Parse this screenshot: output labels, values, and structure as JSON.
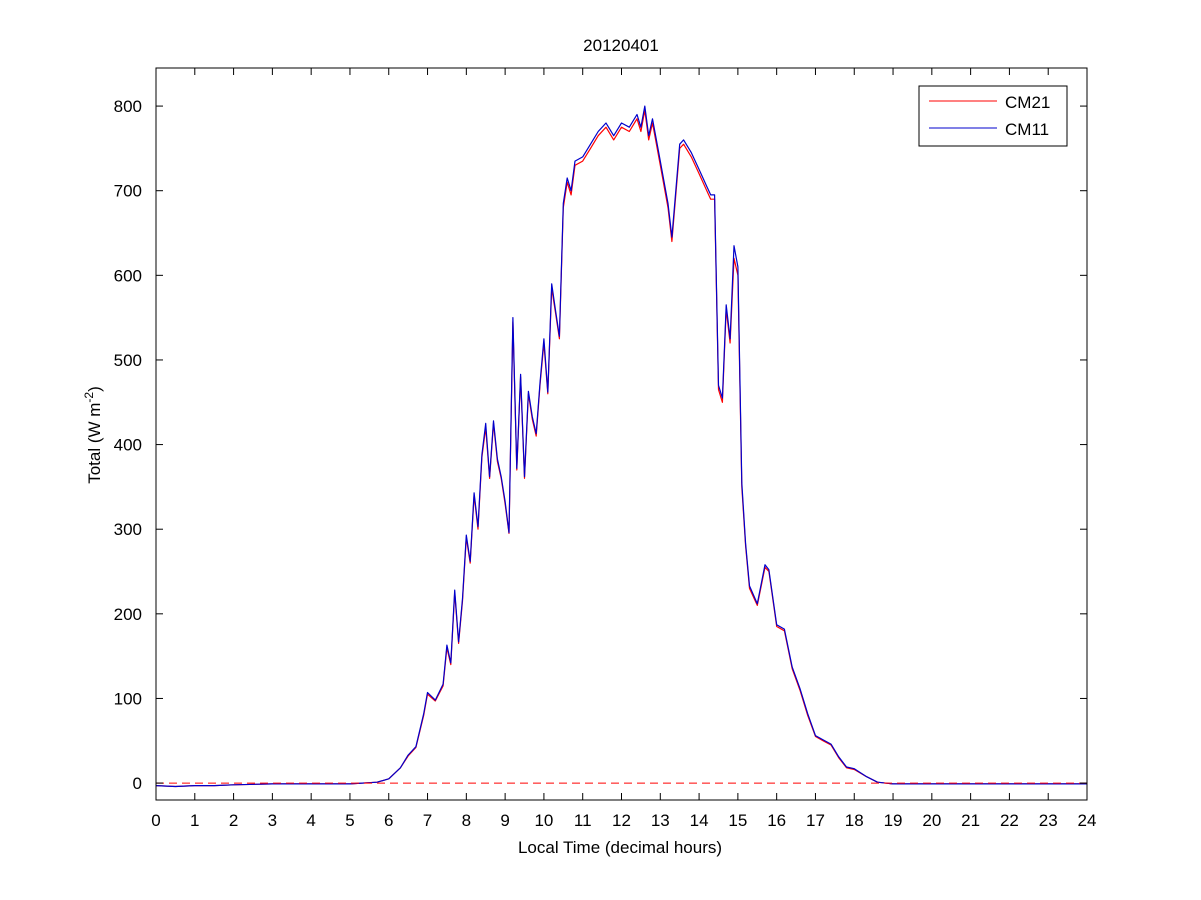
{
  "chart_data": {
    "type": "line",
    "title": "20120401",
    "xlabel": "Local Time (decimal hours)",
    "ylabel": "Total (W m",
    "ylabel_sup": "-2",
    "ylabel_end": ")",
    "xlim": [
      0,
      24
    ],
    "ylim": [
      -20,
      845
    ],
    "xticks": [
      0,
      1,
      2,
      3,
      4,
      5,
      6,
      7,
      8,
      9,
      10,
      11,
      12,
      13,
      14,
      15,
      16,
      17,
      18,
      19,
      20,
      21,
      22,
      23,
      24
    ],
    "yticks": [
      0,
      100,
      200,
      300,
      400,
      500,
      600,
      700,
      800
    ],
    "grid": false,
    "legend_position": "top-right",
    "zero_line": {
      "y": 0,
      "color": "#ff0000",
      "style": "dashed"
    },
    "series": [
      {
        "name": "CM21",
        "color": "#ff0000",
        "points": [
          [
            0,
            -3
          ],
          [
            0.5,
            -4
          ],
          [
            1,
            -3
          ],
          [
            1.5,
            -3
          ],
          [
            2,
            -2
          ],
          [
            3,
            -1
          ],
          [
            4,
            -1
          ],
          [
            5,
            -1
          ],
          [
            5.7,
            1
          ],
          [
            6,
            5
          ],
          [
            6.3,
            18
          ],
          [
            6.5,
            32
          ],
          [
            6.7,
            42
          ],
          [
            6.9,
            80
          ],
          [
            7,
            105
          ],
          [
            7.2,
            97
          ],
          [
            7.4,
            115
          ],
          [
            7.5,
            160
          ],
          [
            7.6,
            140
          ],
          [
            7.7,
            225
          ],
          [
            7.8,
            165
          ],
          [
            7.9,
            215
          ],
          [
            8,
            290
          ],
          [
            8.1,
            260
          ],
          [
            8.2,
            340
          ],
          [
            8.3,
            300
          ],
          [
            8.4,
            385
          ],
          [
            8.5,
            420
          ],
          [
            8.6,
            360
          ],
          [
            8.7,
            425
          ],
          [
            8.8,
            380
          ],
          [
            8.9,
            360
          ],
          [
            9,
            330
          ],
          [
            9.1,
            295
          ],
          [
            9.2,
            545
          ],
          [
            9.3,
            370
          ],
          [
            9.4,
            480
          ],
          [
            9.5,
            360
          ],
          [
            9.6,
            460
          ],
          [
            9.7,
            430
          ],
          [
            9.8,
            410
          ],
          [
            9.9,
            470
          ],
          [
            10,
            520
          ],
          [
            10.1,
            460
          ],
          [
            10.2,
            585
          ],
          [
            10.3,
            555
          ],
          [
            10.4,
            525
          ],
          [
            10.5,
            680
          ],
          [
            10.6,
            710
          ],
          [
            10.7,
            695
          ],
          [
            10.8,
            730
          ],
          [
            11,
            735
          ],
          [
            11.2,
            750
          ],
          [
            11.4,
            765
          ],
          [
            11.6,
            775
          ],
          [
            11.8,
            760
          ],
          [
            12,
            775
          ],
          [
            12.2,
            770
          ],
          [
            12.4,
            785
          ],
          [
            12.5,
            770
          ],
          [
            12.6,
            795
          ],
          [
            12.7,
            760
          ],
          [
            12.8,
            780
          ],
          [
            13,
            730
          ],
          [
            13.2,
            680
          ],
          [
            13.3,
            640
          ],
          [
            13.4,
            695
          ],
          [
            13.5,
            750
          ],
          [
            13.6,
            755
          ],
          [
            13.8,
            740
          ],
          [
            14,
            720
          ],
          [
            14.2,
            700
          ],
          [
            14.3,
            690
          ],
          [
            14.4,
            690
          ],
          [
            14.5,
            465
          ],
          [
            14.6,
            450
          ],
          [
            14.7,
            560
          ],
          [
            14.8,
            520
          ],
          [
            14.9,
            620
          ],
          [
            15,
            600
          ],
          [
            15.1,
            350
          ],
          [
            15.2,
            280
          ],
          [
            15.3,
            230
          ],
          [
            15.5,
            210
          ],
          [
            15.7,
            255
          ],
          [
            15.8,
            250
          ],
          [
            16,
            185
          ],
          [
            16.2,
            180
          ],
          [
            16.4,
            135
          ],
          [
            16.6,
            110
          ],
          [
            16.8,
            80
          ],
          [
            17,
            55
          ],
          [
            17.2,
            50
          ],
          [
            17.4,
            45
          ],
          [
            17.6,
            30
          ],
          [
            17.8,
            18
          ],
          [
            18,
            16
          ],
          [
            18.3,
            8
          ],
          [
            18.6,
            1
          ],
          [
            19,
            -1
          ],
          [
            20,
            -1
          ],
          [
            21,
            -1
          ],
          [
            22,
            -1
          ],
          [
            23,
            -1
          ],
          [
            24,
            -1
          ]
        ]
      },
      {
        "name": "CM11",
        "color": "#0000cc",
        "points": [
          [
            0,
            -3
          ],
          [
            0.5,
            -4
          ],
          [
            1,
            -3
          ],
          [
            1.5,
            -3
          ],
          [
            2,
            -2
          ],
          [
            3,
            -1
          ],
          [
            4,
            -1
          ],
          [
            5,
            -1
          ],
          [
            5.7,
            1
          ],
          [
            6,
            5
          ],
          [
            6.3,
            18
          ],
          [
            6.5,
            33
          ],
          [
            6.7,
            43
          ],
          [
            6.9,
            82
          ],
          [
            7,
            107
          ],
          [
            7.2,
            98
          ],
          [
            7.4,
            117
          ],
          [
            7.5,
            163
          ],
          [
            7.6,
            142
          ],
          [
            7.7,
            228
          ],
          [
            7.8,
            167
          ],
          [
            7.9,
            218
          ],
          [
            8,
            293
          ],
          [
            8.1,
            262
          ],
          [
            8.2,
            343
          ],
          [
            8.3,
            303
          ],
          [
            8.4,
            388
          ],
          [
            8.5,
            425
          ],
          [
            8.6,
            362
          ],
          [
            8.7,
            428
          ],
          [
            8.8,
            383
          ],
          [
            8.9,
            362
          ],
          [
            9,
            333
          ],
          [
            9.1,
            296
          ],
          [
            9.2,
            550
          ],
          [
            9.3,
            372
          ],
          [
            9.4,
            483
          ],
          [
            9.5,
            362
          ],
          [
            9.6,
            463
          ],
          [
            9.7,
            433
          ],
          [
            9.8,
            413
          ],
          [
            9.9,
            473
          ],
          [
            10,
            525
          ],
          [
            10.1,
            462
          ],
          [
            10.2,
            590
          ],
          [
            10.3,
            558
          ],
          [
            10.4,
            528
          ],
          [
            10.5,
            685
          ],
          [
            10.6,
            715
          ],
          [
            10.7,
            700
          ],
          [
            10.8,
            735
          ],
          [
            11,
            740
          ],
          [
            11.2,
            755
          ],
          [
            11.4,
            770
          ],
          [
            11.6,
            780
          ],
          [
            11.8,
            765
          ],
          [
            12,
            780
          ],
          [
            12.2,
            775
          ],
          [
            12.4,
            790
          ],
          [
            12.5,
            775
          ],
          [
            12.6,
            800
          ],
          [
            12.7,
            765
          ],
          [
            12.8,
            785
          ],
          [
            13,
            735
          ],
          [
            13.2,
            685
          ],
          [
            13.3,
            645
          ],
          [
            13.4,
            700
          ],
          [
            13.5,
            755
          ],
          [
            13.6,
            760
          ],
          [
            13.8,
            745
          ],
          [
            14,
            725
          ],
          [
            14.2,
            705
          ],
          [
            14.3,
            695
          ],
          [
            14.4,
            695
          ],
          [
            14.5,
            470
          ],
          [
            14.6,
            455
          ],
          [
            14.7,
            565
          ],
          [
            14.8,
            525
          ],
          [
            14.9,
            635
          ],
          [
            15,
            610
          ],
          [
            15.1,
            355
          ],
          [
            15.2,
            283
          ],
          [
            15.3,
            233
          ],
          [
            15.5,
            212
          ],
          [
            15.7,
            258
          ],
          [
            15.8,
            252
          ],
          [
            16,
            187
          ],
          [
            16.2,
            182
          ],
          [
            16.4,
            137
          ],
          [
            16.6,
            112
          ],
          [
            16.8,
            82
          ],
          [
            17,
            56
          ],
          [
            17.2,
            51
          ],
          [
            17.4,
            46
          ],
          [
            17.6,
            31
          ],
          [
            17.8,
            19
          ],
          [
            18,
            17
          ],
          [
            18.3,
            8
          ],
          [
            18.6,
            1
          ],
          [
            19,
            -1
          ],
          [
            20,
            -1
          ],
          [
            21,
            -1
          ],
          [
            22,
            -1
          ],
          [
            23,
            -1
          ],
          [
            24,
            -1
          ]
        ]
      }
    ]
  }
}
